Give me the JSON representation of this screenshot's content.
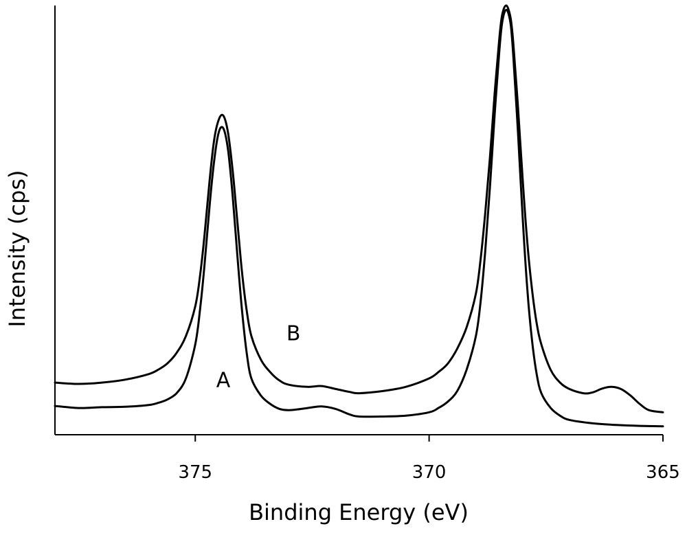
{
  "chart_data": {
    "type": "line",
    "title": "",
    "xlabel": "Binding Energy (eV)",
    "ylabel": "Intensity (cps)",
    "xlim": [
      378,
      365
    ],
    "ylim": [
      0,
      1.0
    ],
    "x_ticks": [
      375,
      370,
      365
    ],
    "x_tick_labels": [
      "375",
      "370",
      "365"
    ],
    "y_ticks": [],
    "grid": false,
    "series": [
      {
        "name": "A",
        "label": "A",
        "label_point": {
          "x": 374.4,
          "y": 0.1
        },
        "points": [
          [
            378.0,
            0.055
          ],
          [
            377.5,
            0.05
          ],
          [
            377.0,
            0.052
          ],
          [
            376.5,
            0.053
          ],
          [
            376.0,
            0.057
          ],
          [
            375.8,
            0.062
          ],
          [
            375.6,
            0.07
          ],
          [
            375.4,
            0.085
          ],
          [
            375.2,
            0.12
          ],
          [
            375.0,
            0.2
          ],
          [
            374.9,
            0.28
          ],
          [
            374.8,
            0.39
          ],
          [
            374.7,
            0.52
          ],
          [
            374.6,
            0.63
          ],
          [
            374.5,
            0.7
          ],
          [
            374.4,
            0.71
          ],
          [
            374.3,
            0.66
          ],
          [
            374.2,
            0.55
          ],
          [
            374.1,
            0.41
          ],
          [
            374.0,
            0.28
          ],
          [
            373.9,
            0.18
          ],
          [
            373.8,
            0.12
          ],
          [
            373.6,
            0.08
          ],
          [
            373.4,
            0.06
          ],
          [
            373.2,
            0.048
          ],
          [
            373.0,
            0.045
          ],
          [
            372.8,
            0.047
          ],
          [
            372.6,
            0.05
          ],
          [
            372.3,
            0.054
          ],
          [
            372.0,
            0.048
          ],
          [
            371.7,
            0.035
          ],
          [
            371.5,
            0.03
          ],
          [
            371.0,
            0.03
          ],
          [
            370.5,
            0.032
          ],
          [
            370.0,
            0.04
          ],
          [
            369.8,
            0.05
          ],
          [
            369.6,
            0.065
          ],
          [
            369.4,
            0.09
          ],
          [
            369.2,
            0.14
          ],
          [
            369.0,
            0.22
          ],
          [
            368.9,
            0.3
          ],
          [
            368.8,
            0.42
          ],
          [
            368.7,
            0.57
          ],
          [
            368.6,
            0.74
          ],
          [
            368.5,
            0.89
          ],
          [
            368.45,
            0.95
          ],
          [
            368.4,
            0.98
          ],
          [
            368.35,
            0.99
          ],
          [
            368.3,
            0.98
          ],
          [
            368.25,
            0.95
          ],
          [
            368.2,
            0.88
          ],
          [
            368.1,
            0.7
          ],
          [
            368.0,
            0.5
          ],
          [
            367.9,
            0.33
          ],
          [
            367.8,
            0.21
          ],
          [
            367.7,
            0.13
          ],
          [
            367.6,
            0.085
          ],
          [
            367.4,
            0.05
          ],
          [
            367.2,
            0.032
          ],
          [
            367.0,
            0.022
          ],
          [
            366.5,
            0.014
          ],
          [
            366.0,
            0.01
          ],
          [
            365.5,
            0.008
          ],
          [
            365.0,
            0.007
          ]
        ]
      },
      {
        "name": "B",
        "label": "B",
        "label_point": {
          "x": 372.9,
          "y": 0.21
        },
        "points": [
          [
            378.0,
            0.11
          ],
          [
            377.5,
            0.107
          ],
          [
            377.0,
            0.11
          ],
          [
            376.5,
            0.117
          ],
          [
            376.0,
            0.13
          ],
          [
            375.8,
            0.14
          ],
          [
            375.6,
            0.155
          ],
          [
            375.4,
            0.18
          ],
          [
            375.2,
            0.22
          ],
          [
            375.0,
            0.29
          ],
          [
            374.9,
            0.36
          ],
          [
            374.8,
            0.46
          ],
          [
            374.7,
            0.58
          ],
          [
            374.6,
            0.68
          ],
          [
            374.5,
            0.73
          ],
          [
            374.4,
            0.74
          ],
          [
            374.3,
            0.7
          ],
          [
            374.2,
            0.61
          ],
          [
            374.1,
            0.49
          ],
          [
            374.0,
            0.37
          ],
          [
            373.9,
            0.28
          ],
          [
            373.8,
            0.22
          ],
          [
            373.6,
            0.165
          ],
          [
            373.4,
            0.135
          ],
          [
            373.2,
            0.115
          ],
          [
            373.0,
            0.105
          ],
          [
            372.6,
            0.1
          ],
          [
            372.3,
            0.102
          ],
          [
            372.0,
            0.095
          ],
          [
            371.7,
            0.088
          ],
          [
            371.5,
            0.085
          ],
          [
            371.0,
            0.09
          ],
          [
            370.5,
            0.1
          ],
          [
            370.0,
            0.12
          ],
          [
            369.8,
            0.135
          ],
          [
            369.6,
            0.155
          ],
          [
            369.4,
            0.19
          ],
          [
            369.2,
            0.24
          ],
          [
            369.0,
            0.32
          ],
          [
            368.9,
            0.4
          ],
          [
            368.8,
            0.51
          ],
          [
            368.7,
            0.64
          ],
          [
            368.6,
            0.79
          ],
          [
            368.5,
            0.92
          ],
          [
            368.45,
            0.97
          ],
          [
            368.4,
            0.993
          ],
          [
            368.35,
            1.0
          ],
          [
            368.3,
            0.99
          ],
          [
            368.25,
            0.965
          ],
          [
            368.2,
            0.91
          ],
          [
            368.1,
            0.76
          ],
          [
            368.0,
            0.59
          ],
          [
            367.9,
            0.44
          ],
          [
            367.8,
            0.33
          ],
          [
            367.7,
            0.25
          ],
          [
            367.6,
            0.2
          ],
          [
            367.4,
            0.14
          ],
          [
            367.2,
            0.11
          ],
          [
            367.0,
            0.095
          ],
          [
            366.7,
            0.085
          ],
          [
            366.5,
            0.087
          ],
          [
            366.3,
            0.096
          ],
          [
            366.1,
            0.1
          ],
          [
            365.9,
            0.095
          ],
          [
            365.7,
            0.08
          ],
          [
            365.5,
            0.06
          ],
          [
            365.3,
            0.045
          ],
          [
            365.0,
            0.04
          ]
        ]
      }
    ]
  }
}
